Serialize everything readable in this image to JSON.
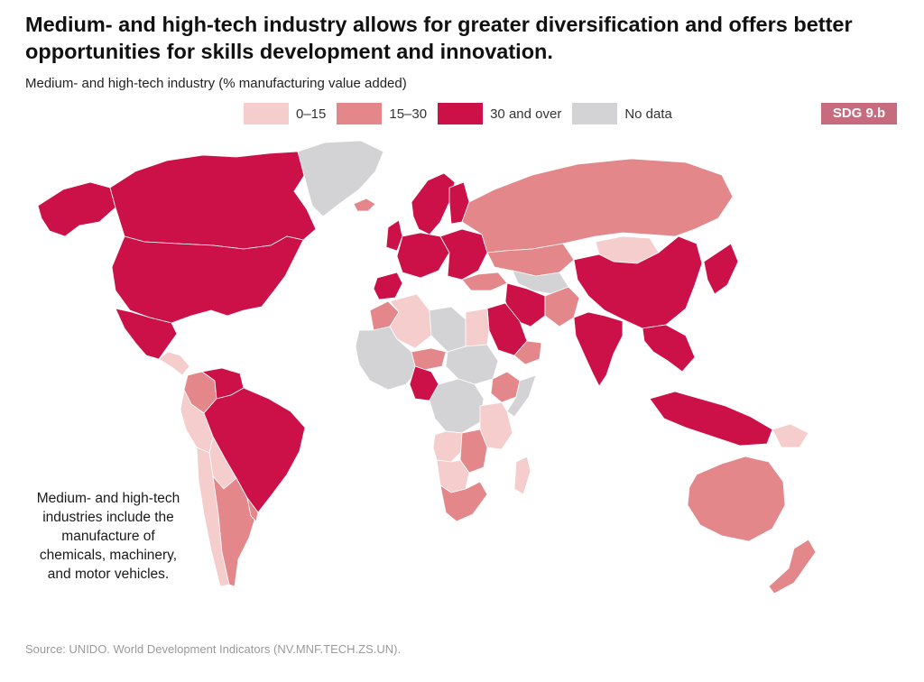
{
  "header": {
    "title": "Medium- and high-tech industry allows for greater diversification and offers better opportunities for skills development and innovation.",
    "subtitle": "Medium- and high-tech industry (% manufacturing value added)",
    "badge": "SDG 9.b"
  },
  "legend": [
    {
      "label": "0–15",
      "color": "#f6cdcd"
    },
    {
      "label": "15–30",
      "color": "#e3878a"
    },
    {
      "label": "30 and over",
      "color": "#cc1149"
    },
    {
      "label": "No data",
      "color": "#d3d3d5"
    }
  ],
  "annotation": "Medium- and high-tech industries include the manufacture of chemicals, machinery, and motor vehicles.",
  "source": "Source: UNIDO. World Development Indicators (NV.MNF.TECH.ZS.UN).",
  "map": {
    "colors": {
      "low": "#f6cdcd",
      "mid": "#e3878a",
      "high": "#cc1149",
      "nodata": "#d3d3d5"
    },
    "regions": [
      {
        "name": "alaska",
        "category": "high"
      },
      {
        "name": "canada",
        "category": "high"
      },
      {
        "name": "greenland",
        "category": "nodata"
      },
      {
        "name": "usa",
        "category": "high"
      },
      {
        "name": "mexico",
        "category": "high"
      },
      {
        "name": "central-america",
        "category": "low"
      },
      {
        "name": "colombia",
        "category": "mid"
      },
      {
        "name": "venezuela",
        "category": "high"
      },
      {
        "name": "brazil",
        "category": "high"
      },
      {
        "name": "peru",
        "category": "low"
      },
      {
        "name": "bolivia",
        "category": "low"
      },
      {
        "name": "chile",
        "category": "low"
      },
      {
        "name": "argentina",
        "category": "mid"
      },
      {
        "name": "uruguay",
        "category": "mid"
      },
      {
        "name": "iceland",
        "category": "mid"
      },
      {
        "name": "scandinavia",
        "category": "high"
      },
      {
        "name": "finland",
        "category": "high"
      },
      {
        "name": "uk",
        "category": "high"
      },
      {
        "name": "western-europe",
        "category": "high"
      },
      {
        "name": "iberia",
        "category": "high"
      },
      {
        "name": "eastern-europe",
        "category": "high"
      },
      {
        "name": "russia",
        "category": "mid"
      },
      {
        "name": "kazakhstan",
        "category": "mid"
      },
      {
        "name": "mongolia",
        "category": "low"
      },
      {
        "name": "china",
        "category": "high"
      },
      {
        "name": "korea-japan",
        "category": "high"
      },
      {
        "name": "central-asia",
        "category": "nodata"
      },
      {
        "name": "turkey",
        "category": "mid"
      },
      {
        "name": "iran",
        "category": "high"
      },
      {
        "name": "afghanistan-pakistan",
        "category": "mid"
      },
      {
        "name": "saudi-arabia",
        "category": "high"
      },
      {
        "name": "yemen-oman",
        "category": "mid"
      },
      {
        "name": "india",
        "category": "high"
      },
      {
        "name": "southeast-asia",
        "category": "high"
      },
      {
        "name": "indonesia",
        "category": "high"
      },
      {
        "name": "papua-new-guinea",
        "category": "low"
      },
      {
        "name": "australia",
        "category": "mid"
      },
      {
        "name": "new-zealand",
        "category": "mid"
      },
      {
        "name": "morocco",
        "category": "mid"
      },
      {
        "name": "algeria",
        "category": "low"
      },
      {
        "name": "libya",
        "category": "nodata"
      },
      {
        "name": "egypt",
        "category": "low"
      },
      {
        "name": "west-africa",
        "category": "nodata"
      },
      {
        "name": "nigeria",
        "category": "high"
      },
      {
        "name": "niger",
        "category": "mid"
      },
      {
        "name": "sudan",
        "category": "nodata"
      },
      {
        "name": "ethiopia",
        "category": "mid"
      },
      {
        "name": "somalia",
        "category": "nodata"
      },
      {
        "name": "central-africa",
        "category": "nodata"
      },
      {
        "name": "kenya-tanzania",
        "category": "low"
      },
      {
        "name": "angola",
        "category": "low"
      },
      {
        "name": "zambia-zimbabwe",
        "category": "mid"
      },
      {
        "name": "namibia-botswana",
        "category": "low"
      },
      {
        "name": "south-africa",
        "category": "mid"
      },
      {
        "name": "madagascar",
        "category": "low"
      }
    ]
  }
}
